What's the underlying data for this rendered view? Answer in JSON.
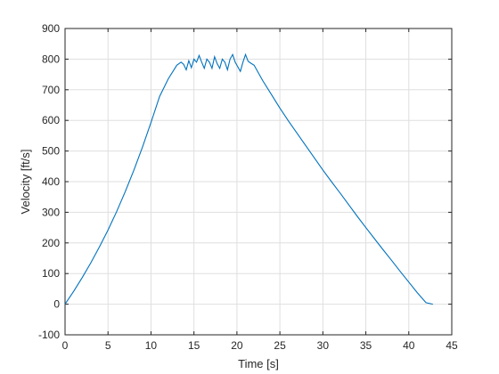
{
  "chart_data": {
    "type": "line",
    "title": "",
    "xlabel": "Time [s]",
    "ylabel": "Velocity [ft/s]",
    "xlim": [
      0,
      45
    ],
    "ylim": [
      -100,
      900
    ],
    "xticks": [
      0,
      5,
      10,
      15,
      20,
      25,
      30,
      35,
      40,
      45
    ],
    "yticks": [
      -100,
      0,
      100,
      200,
      300,
      400,
      500,
      600,
      700,
      800,
      900
    ],
    "grid": true,
    "legend": "none",
    "colors": {
      "series": "#0072bd"
    },
    "series": [
      {
        "x": [
          0,
          1,
          2,
          3,
          4,
          5,
          6,
          7,
          8,
          9,
          10,
          11,
          12,
          13,
          13.5,
          13.8,
          14.1,
          14.4,
          14.7,
          15.0,
          15.3,
          15.6,
          15.9,
          16.2,
          16.5,
          16.8,
          17.1,
          17.4,
          17.7,
          18.0,
          18.3,
          18.6,
          18.9,
          19.2,
          19.5,
          19.8,
          20.1,
          20.4,
          20.7,
          21.0,
          21.3,
          21.6,
          22.0,
          23,
          24,
          25,
          26,
          27,
          28,
          29,
          30,
          31,
          32,
          33,
          34,
          35,
          36,
          37,
          38,
          39,
          40,
          41,
          42,
          42.8
        ],
        "y": [
          0,
          42,
          87,
          135,
          187,
          242,
          302,
          367,
          437,
          512,
          593,
          678,
          735,
          780,
          790,
          783,
          765,
          795,
          772,
          800,
          790,
          812,
          790,
          770,
          800,
          790,
          770,
          808,
          785,
          770,
          800,
          790,
          765,
          800,
          815,
          790,
          775,
          760,
          790,
          815,
          793,
          787,
          780,
          730,
          685,
          640,
          598,
          558,
          518,
          478,
          438,
          400,
          363,
          325,
          287,
          250,
          214,
          178,
          143,
          107,
          72,
          37,
          5,
          0
        ]
      }
    ]
  }
}
